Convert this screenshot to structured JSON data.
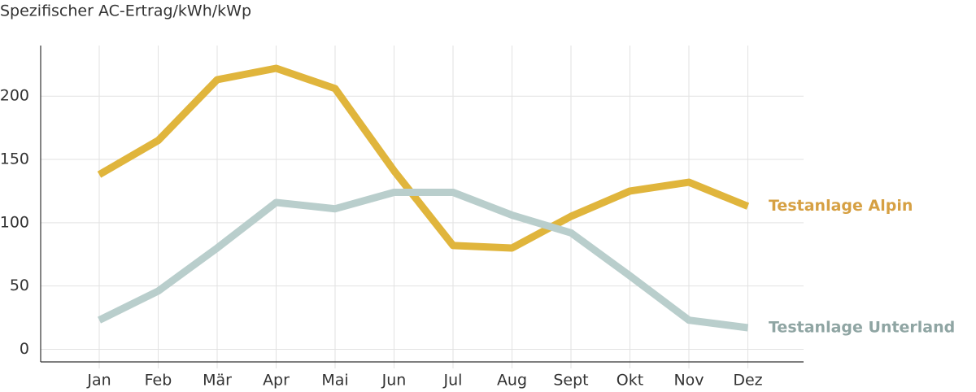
{
  "chart_data": {
    "type": "line",
    "y_label": "Spezifischer AC-Ertrag/kWh/kWp",
    "categories": [
      "Jan",
      "Feb",
      "Mär",
      "Apr",
      "Mai",
      "Jun",
      "Jul",
      "Aug",
      "Sept",
      "Okt",
      "Nov",
      "Dez"
    ],
    "series": [
      {
        "name": "Testanlage Alpin",
        "color": "#e0b53c",
        "label_color": "#d6a043",
        "values": [
          138,
          165,
          213,
          222,
          206,
          141,
          82,
          80,
          105,
          125,
          132,
          113
        ]
      },
      {
        "name": "Testanlage Unterland",
        "color": "#b9cecc",
        "label_color": "#8fa5a3",
        "values": [
          23,
          46,
          80,
          116,
          111,
          124,
          124,
          106,
          92,
          58,
          23,
          17
        ]
      }
    ],
    "ylim": [
      -10,
      240
    ],
    "yticks": [
      0,
      50,
      100,
      150,
      200
    ],
    "grid": true
  }
}
